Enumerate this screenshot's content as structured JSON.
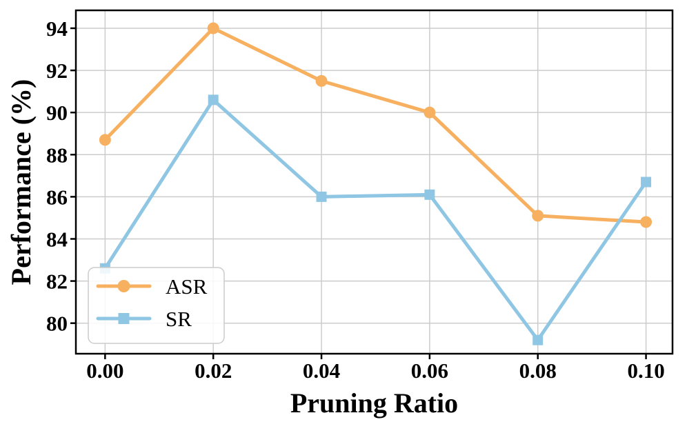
{
  "chart_data": {
    "type": "line",
    "title": "",
    "xlabel": "Pruning Ratio",
    "ylabel": "Performance (%)",
    "x": [
      0.0,
      0.02,
      0.04,
      0.06,
      0.08,
      0.1
    ],
    "xtick_labels": [
      "0.00",
      "0.02",
      "0.04",
      "0.06",
      "0.08",
      "0.10"
    ],
    "yticks": [
      80,
      82,
      84,
      86,
      88,
      90,
      92,
      94
    ],
    "xlim": [
      -0.0054,
      0.1049
    ],
    "ylim": [
      78.55,
      94.85
    ],
    "grid": true,
    "grid_color": "#cccccc",
    "axis_color": "#000000",
    "legend_position": "lower-left",
    "series": [
      {
        "name": "ASR",
        "color": "#F7B05F",
        "marker": "circle",
        "values": [
          88.7,
          94.0,
          91.5,
          90.0,
          85.1,
          84.8
        ]
      },
      {
        "name": "SR",
        "color": "#8FC6E3",
        "marker": "square",
        "values": [
          82.6,
          90.6,
          86.0,
          86.1,
          79.2,
          86.7
        ]
      }
    ]
  }
}
